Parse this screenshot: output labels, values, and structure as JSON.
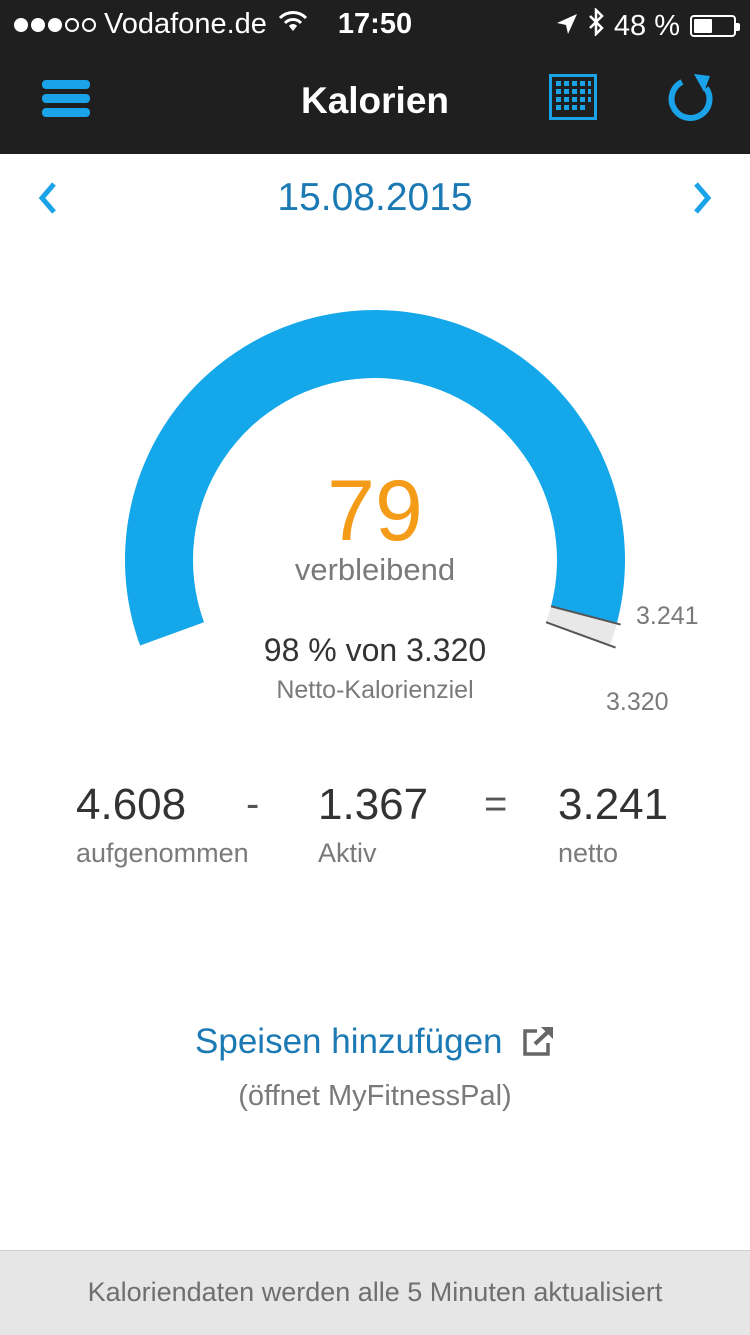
{
  "status_bar": {
    "carrier": "Vodafone.de",
    "time": "17:50",
    "battery_text": "48 %",
    "battery_level_percent": 48,
    "icons": [
      "signal-dots-icon",
      "wifi-icon",
      "location-arrow-icon",
      "bluetooth-icon",
      "battery-icon"
    ]
  },
  "nav": {
    "title": "Kalorien",
    "icons": [
      "menu-icon",
      "calendar-icon",
      "refresh-icon"
    ]
  },
  "date": {
    "label": "15.08.2015",
    "icons": [
      "chevron-left-icon",
      "chevron-right-icon"
    ]
  },
  "gauge": {
    "remaining_value": "79",
    "remaining_label": "verbleibend",
    "percent_text": "98 % von 3.320",
    "goal_label": "Netto-Kalorienziel",
    "consumed_marker_label": "3.241",
    "goal_marker_label": "3.320",
    "fill_fraction": 0.976,
    "accent_color": "#14a7ea",
    "remaining_color": "#f49b18"
  },
  "equation": {
    "taken_value": "4.608",
    "taken_label": "aufgenommen",
    "minus_op": "-",
    "active_value": "1.367",
    "active_label": "Aktiv",
    "equals_op": "=",
    "net_value": "3.241",
    "net_label": "netto"
  },
  "add_food": {
    "link_label": "Speisen hinzufügen",
    "sub_label": "(öffnet MyFitnessPal)",
    "icon": "external-link-icon"
  },
  "footer": {
    "text": "Kaloriendaten werden alle 5 Minuten aktualisiert"
  }
}
